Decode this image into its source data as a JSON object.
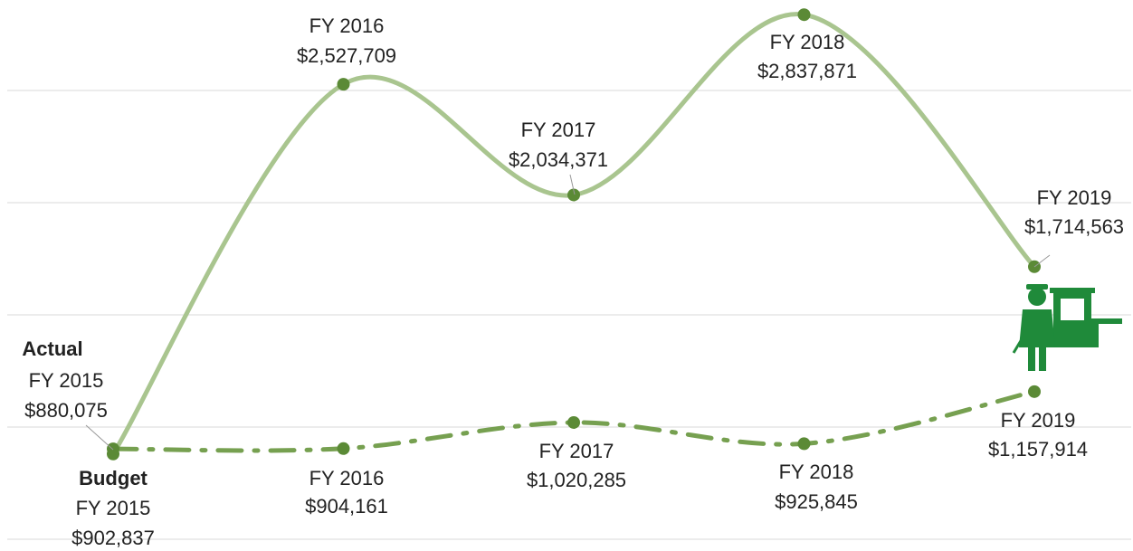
{
  "chart_data": {
    "type": "line",
    "categories": [
      "FY 2015",
      "FY 2016",
      "FY 2017",
      "FY 2018",
      "FY 2019"
    ],
    "series": [
      {
        "name": "Actual",
        "color": "#a9c58f",
        "marker_color": "#5b8a36",
        "dash": "solid",
        "values": [
          880075,
          2527709,
          2034371,
          2837871,
          1714563
        ],
        "value_labels": [
          "$880,075",
          "$2,527,709",
          "$2,034,371",
          "$2,837,871",
          "$1,714,563"
        ]
      },
      {
        "name": "Budget",
        "color": "#76a050",
        "marker_color": "#5b8a36",
        "dash": "dashdot",
        "values": [
          902837,
          904161,
          1020285,
          925845,
          1157914
        ],
        "value_labels": [
          "$902,837",
          "$904,161",
          "$1,020,285",
          "$925,845",
          "$1,157,914"
        ]
      }
    ],
    "ylim": [
      400000,
      2900000
    ],
    "yticks": [
      500000,
      1000000,
      1500000,
      2000000,
      2500000
    ],
    "grid": true
  }
}
